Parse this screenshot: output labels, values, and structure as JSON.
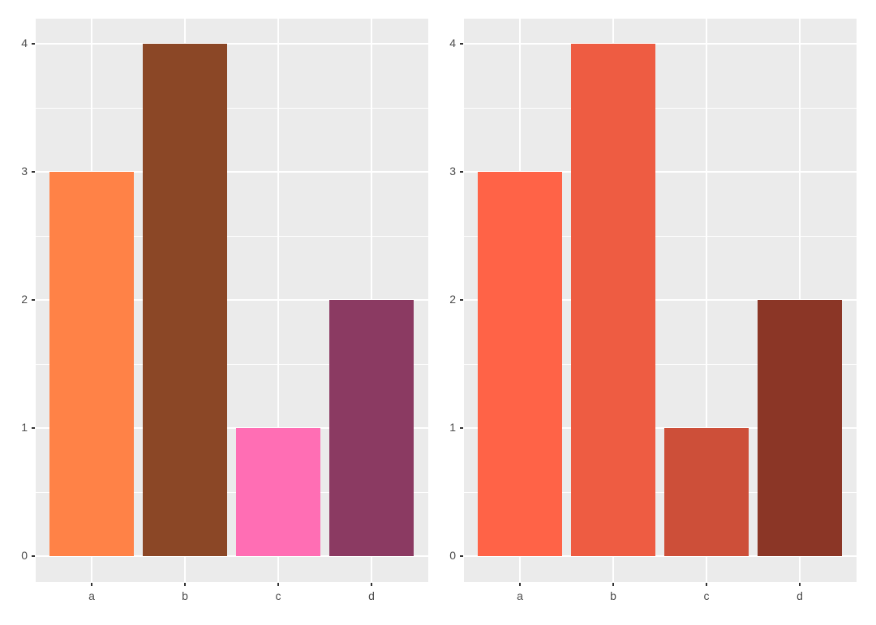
{
  "chart_data": [
    {
      "type": "bar",
      "title": "",
      "xlabel": "",
      "ylabel": "",
      "categories": [
        "a",
        "b",
        "c",
        "d"
      ],
      "values": [
        3,
        4,
        1,
        2
      ],
      "colors": [
        "#FF8247",
        "#8B4726",
        "#FF6EB4",
        "#8B3A62"
      ],
      "yticks": [
        "0",
        "1",
        "2",
        "3",
        "4"
      ],
      "ylim": [
        -0.2,
        4.2
      ],
      "grid": true,
      "legend": "none"
    },
    {
      "type": "bar",
      "title": "",
      "xlabel": "",
      "ylabel": "",
      "categories": [
        "a",
        "b",
        "c",
        "d"
      ],
      "values": [
        3,
        4,
        1,
        2
      ],
      "colors": [
        "#FF6347",
        "#EE5C42",
        "#CD4F39",
        "#8B3626"
      ],
      "yticks": [
        "0",
        "1",
        "2",
        "3",
        "4"
      ],
      "ylim": [
        -0.2,
        4.2
      ],
      "grid": true,
      "legend": "none"
    }
  ]
}
